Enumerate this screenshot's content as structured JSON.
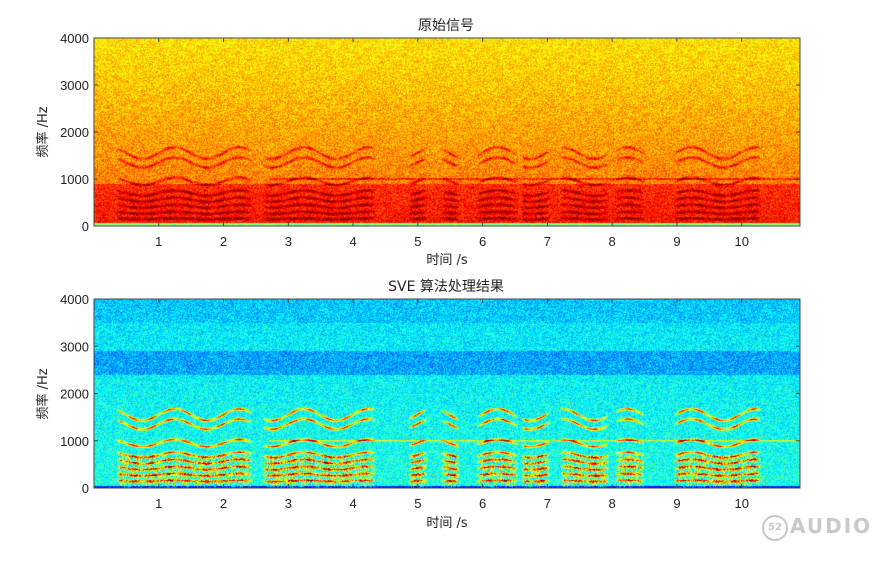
{
  "chart_data": [
    {
      "type": "heatmap",
      "title": "原始信号",
      "xlabel": "时间 /s",
      "ylabel": "频率 /Hz",
      "xlim": [
        0,
        10.9
      ],
      "ylim": [
        0,
        4000
      ],
      "xticks": [
        1,
        2,
        3,
        4,
        5,
        6,
        7,
        8,
        9,
        10
      ],
      "yticks": [
        0,
        1000,
        2000,
        3000,
        4000
      ],
      "colormap": "jet",
      "speech_intervals_s": [
        [
          0.35,
          2.45
        ],
        [
          2.6,
          4.35
        ],
        [
          4.85,
          5.15
        ],
        [
          5.35,
          5.65
        ],
        [
          5.9,
          6.55
        ],
        [
          6.6,
          7.05
        ],
        [
          7.2,
          7.95
        ],
        [
          8.05,
          8.5
        ],
        [
          8.95,
          10.3
        ]
      ],
      "tone_hz": 1000,
      "harmonic_bands_hz": [
        150,
        280,
        420,
        560,
        700,
        950,
        1350,
        1550
      ],
      "energy_profile": "high-overall (noisy), strongest below 1000 Hz, weaker toward 4000 Hz"
    },
    {
      "type": "heatmap",
      "title": "SVE 算法处理结果",
      "xlabel": "时间 /s",
      "ylabel": "频率 /Hz",
      "xlim": [
        0,
        10.9
      ],
      "ylim": [
        0,
        4000
      ],
      "xticks": [
        1,
        2,
        3,
        4,
        5,
        6,
        7,
        8,
        9,
        10
      ],
      "yticks": [
        0,
        1000,
        2000,
        3000,
        4000
      ],
      "colormap": "jet",
      "speech_intervals_s": [
        [
          0.35,
          2.45
        ],
        [
          2.6,
          4.35
        ],
        [
          4.85,
          5.15
        ],
        [
          5.35,
          5.65
        ],
        [
          5.9,
          6.55
        ],
        [
          6.6,
          7.05
        ],
        [
          7.2,
          7.95
        ],
        [
          8.05,
          8.5
        ],
        [
          8.95,
          10.3
        ]
      ],
      "tone_hz": 1000,
      "harmonic_bands_hz": [
        150,
        280,
        420,
        560,
        700,
        950,
        1350,
        1550
      ],
      "energy_profile": "noise suppressed (cyan/blue background), speech harmonics preserved in red/yellow"
    }
  ],
  "watermark": {
    "badge": "52",
    "text": "AUDIO"
  }
}
